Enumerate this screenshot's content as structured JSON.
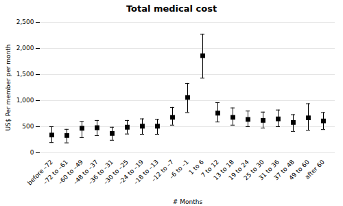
{
  "chart_data": {
    "type": "errorbar",
    "title": "Total medical cost",
    "xlabel": "# Months",
    "ylabel": "US$ Per member per month",
    "categories": [
      "before –72",
      "–72 to –61",
      "–60 to –49",
      "–48 to –37",
      "–36 to –31",
      "–30 to –25",
      "–24 to –19",
      "–18 to –13",
      "–12 to –7",
      "–6 to –1",
      "1 to 6",
      "7 to 12",
      "13 to 18",
      "19 to 24",
      "25 to 30",
      "31 to 36",
      "37 to 48",
      "49 to 60",
      "after 60"
    ],
    "values": [
      340,
      330,
      470,
      480,
      370,
      490,
      510,
      510,
      680,
      1060,
      1860,
      760,
      680,
      640,
      620,
      650,
      580,
      670,
      610
    ],
    "lower": [
      195,
      190,
      290,
      330,
      240,
      360,
      355,
      355,
      530,
      770,
      1430,
      590,
      530,
      500,
      475,
      500,
      410,
      430,
      445
    ],
    "upper": [
      500,
      450,
      600,
      620,
      490,
      620,
      650,
      640,
      870,
      1330,
      2270,
      960,
      860,
      800,
      780,
      820,
      730,
      940,
      770
    ],
    "color": "black",
    "marker": "square",
    "ylim": [
      0,
      2500
    ],
    "yticks": [
      0,
      500,
      {
        "value": 1000,
        "label": "1,000"
      },
      {
        "value": 1500,
        "label": "1,500"
      },
      {
        "value": 2000,
        "label": "2,000"
      },
      {
        "value": 2500,
        "label": "2,500"
      }
    ],
    "grid": "y"
  }
}
